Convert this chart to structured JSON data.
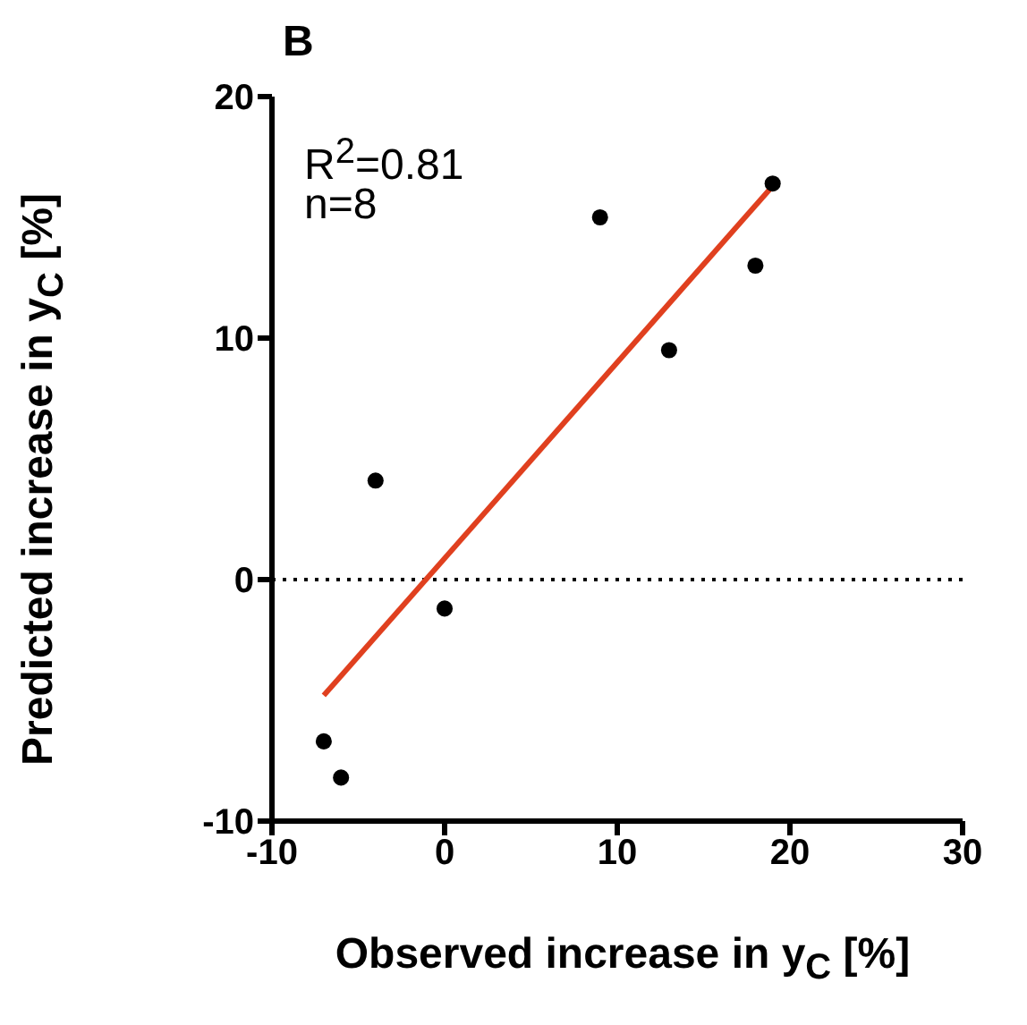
{
  "chart_data": {
    "type": "scatter",
    "title": "B",
    "xlabel": "Observed increase in y$_{C}$ [%]",
    "ylabel": "Predicted increase in y$_{C}$ [%]",
    "annotations": [
      "R$^{2}$=0.81",
      "n=8"
    ],
    "xlim": [
      -10,
      30
    ],
    "xticks": [
      -10,
      0,
      10,
      20,
      30
    ],
    "ylim": [
      -10,
      20
    ],
    "yticks": [
      -10,
      0,
      10,
      20
    ],
    "grid": false,
    "marker": "circle",
    "series": [
      {
        "color": "#000000",
        "x": [
          -7,
          -6,
          -4,
          0,
          9,
          13,
          18,
          19
        ],
        "values": [
          -6.7,
          -8.2,
          4.1,
          -1.2,
          15,
          9.5,
          13,
          16.4
        ]
      },
      {
        "type": "line",
        "color": "#e0401f",
        "marker": "none",
        "x": [
          -7,
          19
        ],
        "values": [
          -4.8,
          16.3
        ]
      }
    ],
    "ref_lines": [
      {
        "axis": "y",
        "value": 0,
        "line_style": "dotted",
        "color": "#000000"
      }
    ]
  }
}
